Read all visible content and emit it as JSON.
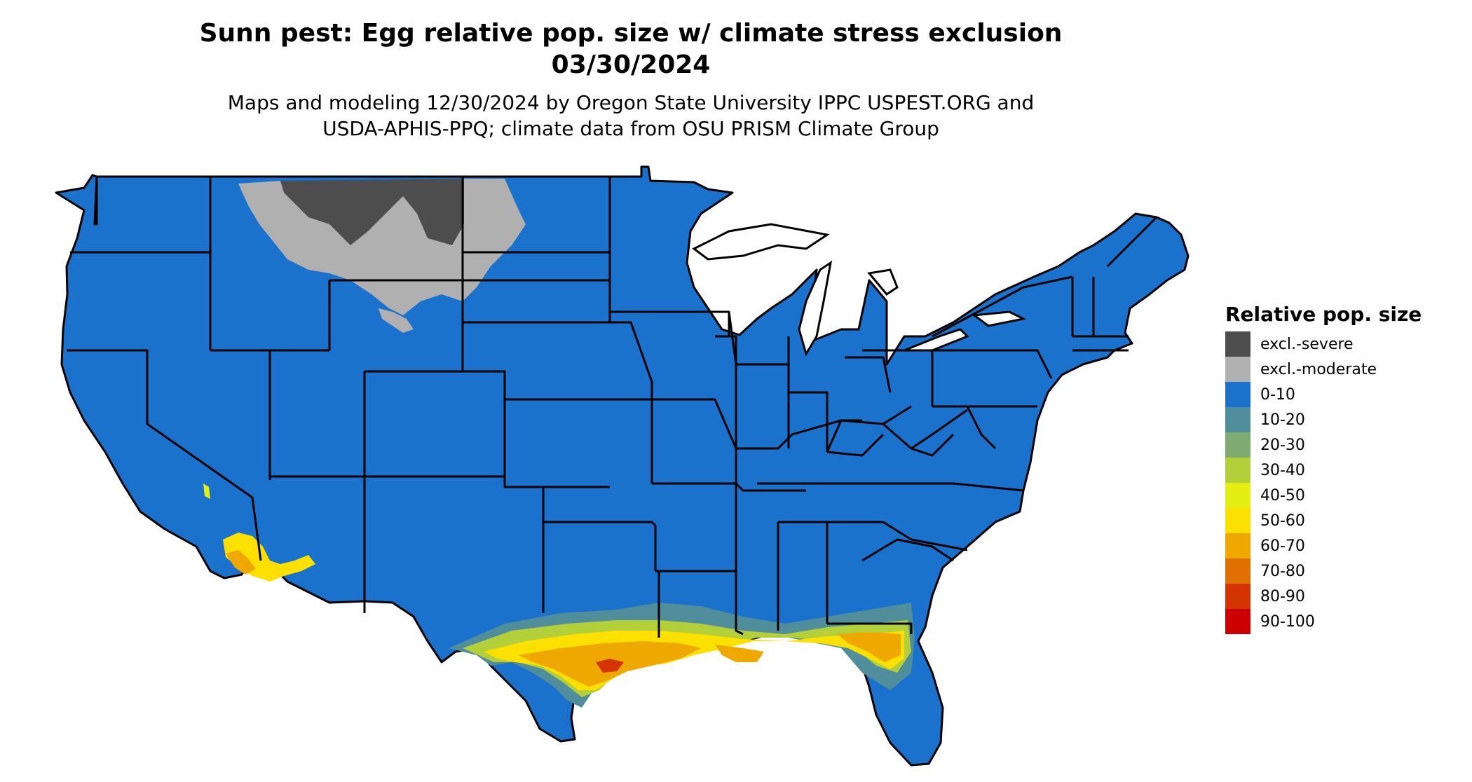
{
  "title": {
    "line1": "Sunn pest: Egg relative pop. size w/ climate stress exclusion",
    "line2": "03/30/2024"
  },
  "subtitle": {
    "line1": "Maps and modeling 12/30/2024 by Oregon State University IPPC USPEST.ORG and",
    "line2": "USDA-APHIS-PPQ; climate data from OSU PRISM Climate Group"
  },
  "legend": {
    "title": "Relative pop. size",
    "items": [
      {
        "label": "excl.-severe",
        "color": "#4d4d4d"
      },
      {
        "label": "excl.-moderate",
        "color": "#b0b0b0"
      },
      {
        "label": "0-10",
        "color": "#1a72cc"
      },
      {
        "label": "10-20",
        "color": "#4f8e9a"
      },
      {
        "label": "20-30",
        "color": "#7dab72"
      },
      {
        "label": "30-40",
        "color": "#b3cf3a"
      },
      {
        "label": "40-50",
        "color": "#e4ee12"
      },
      {
        "label": "50-60",
        "color": "#fbe000"
      },
      {
        "label": "60-70",
        "color": "#eea800"
      },
      {
        "label": "70-80",
        "color": "#e07000"
      },
      {
        "label": "80-90",
        "color": "#d43400"
      },
      {
        "label": "90-100",
        "color": "#cc0000"
      }
    ]
  }
}
